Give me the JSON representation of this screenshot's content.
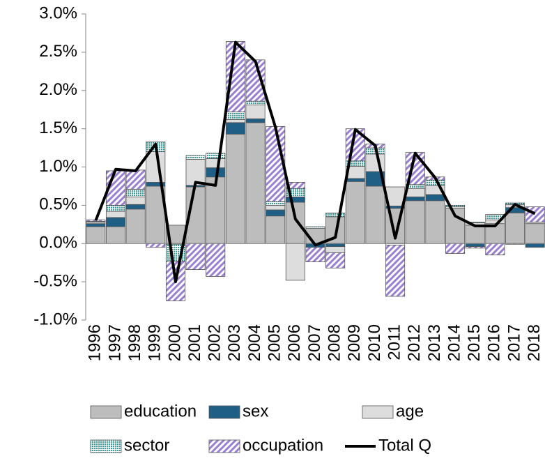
{
  "chart_data": {
    "type": "bar",
    "stacked": true,
    "categories": [
      "1996",
      "1997",
      "1998",
      "1999",
      "2000",
      "2001",
      "2002",
      "2003",
      "2004",
      "2005",
      "2006",
      "2007",
      "2008",
      "2009",
      "2010",
      "2011",
      "2012",
      "2013",
      "2014",
      "2015",
      "2016",
      "2017",
      "2018"
    ],
    "ylim": [
      -1,
      3
    ],
    "yticks": [
      {
        "value": -1,
        "label": "-1.0%"
      },
      {
        "value": -0.5,
        "label": "-0.5%"
      },
      {
        "value": 0,
        "label": "0.0%"
      },
      {
        "value": 0.5,
        "label": "0.5%"
      },
      {
        "value": 1,
        "label": "1.0%"
      },
      {
        "value": 1.5,
        "label": "1.5%"
      },
      {
        "value": 2,
        "label": "2.0%"
      },
      {
        "value": 2.5,
        "label": "2.5%"
      },
      {
        "value": 3,
        "label": "3.0%"
      }
    ],
    "series": [
      {
        "name": "education",
        "color": "#bdbdbd",
        "pattern": "solid",
        "values": [
          0.22,
          0.22,
          0.45,
          0.75,
          0.24,
          0.74,
          0.87,
          1.43,
          1.58,
          0.36,
          0.54,
          0.2,
          0.35,
          0.81,
          0.75,
          0.46,
          0.56,
          0.56,
          0.46,
          0.24,
          0.26,
          0.4,
          0.26
        ]
      },
      {
        "name": "sex",
        "color": "#1f5f85",
        "pattern": "solid",
        "values": [
          0.04,
          0.12,
          0.06,
          0.05,
          0,
          0.02,
          0.12,
          0.15,
          0.05,
          0.08,
          0.07,
          -0.05,
          -0.04,
          0.04,
          0.19,
          0.03,
          0.05,
          0.08,
          0,
          -0.04,
          0,
          0.07,
          -0.05
        ]
      },
      {
        "name": "age",
        "color": "#dddddd",
        "pattern": "solid",
        "values": [
          0.02,
          0.08,
          0.1,
          0.4,
          -0.01,
          0.34,
          0.12,
          0.04,
          0.18,
          0.06,
          -0.48,
          0,
          -0.08,
          0.16,
          0.23,
          0.25,
          0.11,
          0.12,
          0.02,
          0.03,
          0.05,
          0.04,
          0.02
        ]
      },
      {
        "name": "sector",
        "color": "#3a9c9c",
        "pattern": "dots",
        "values": [
          0.01,
          0.08,
          0.1,
          0.13,
          -0.22,
          0.05,
          0.07,
          0.1,
          0.05,
          0.05,
          0.11,
          0.02,
          0.05,
          0.07,
          0.08,
          -0.02,
          0.05,
          0.07,
          0.02,
          0.01,
          0.07,
          0.02,
          0
        ]
      },
      {
        "name": "occupation",
        "color": "#9a7fd0",
        "pattern": "hatch",
        "values": [
          0.02,
          0.45,
          0.25,
          -0.05,
          -0.52,
          -0.34,
          -0.43,
          0.92,
          0.54,
          0.98,
          0.08,
          -0.19,
          -0.2,
          0.42,
          0.05,
          -0.67,
          0.42,
          0.04,
          -0.13,
          -0.02,
          -0.15,
          -0.01,
          0.2
        ]
      },
      {
        "name": "Total Q",
        "type": "line",
        "color": "#000000",
        "values": [
          0.3,
          0.97,
          0.95,
          1.3,
          -0.5,
          0.8,
          0.76,
          2.63,
          2.38,
          1.52,
          0.32,
          -0.02,
          0.08,
          1.49,
          1.28,
          0.07,
          1.18,
          0.86,
          0.36,
          0.23,
          0.23,
          0.51,
          0.39
        ]
      }
    ]
  }
}
